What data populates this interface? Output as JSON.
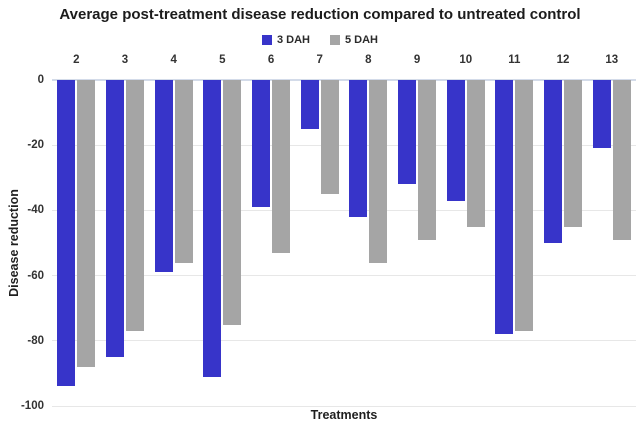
{
  "title": "Average post-treatment disease reduction compared to untreated control",
  "axes": {
    "x_title": "Treatments",
    "y_title": "Disease reduction"
  },
  "colors": {
    "series_3dah": "#3734c9",
    "series_5dah": "#a5a5a5",
    "gridline": "#e7e7e7",
    "zero_line": "#d3dbe9",
    "background": "#ffffff",
    "text": "#1f1f1f"
  },
  "chart_data": {
    "type": "bar",
    "title": "Average post-treatment disease reduction compared to untreated control",
    "xlabel": "Treatments",
    "ylabel": "Disease reduction",
    "categories": [
      "2",
      "3",
      "4",
      "5",
      "6",
      "7",
      "8",
      "9",
      "10",
      "11",
      "12",
      "13"
    ],
    "series": [
      {
        "name": "3 DAH",
        "color": "#3734c9",
        "values": [
          -94,
          -85,
          -59,
          -91,
          -39,
          -15,
          -42,
          -32,
          -37,
          -78,
          -50,
          -21
        ]
      },
      {
        "name": "5 DAH",
        "color": "#a5a5a5",
        "values": [
          -88,
          -77,
          -56,
          -75,
          -53,
          -35,
          -56,
          -49,
          -45,
          -77,
          -45,
          -49
        ]
      }
    ],
    "ylim": [
      -100,
      0
    ],
    "y_ticks": [
      0,
      -20,
      -40,
      -60,
      -80,
      -100
    ],
    "grid": true,
    "legend_position": "top-center"
  }
}
